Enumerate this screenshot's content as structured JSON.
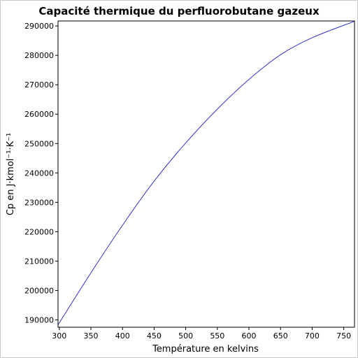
{
  "chart_data": {
    "type": "line",
    "title": "Capacité thermique du perfluorobutane gazeux",
    "xlabel": "Température en kelvins",
    "ylabel": "Cp en J·kmol⁻¹·K⁻¹",
    "xlim": [
      298,
      767
    ],
    "ylim": [
      187500,
      291700
    ],
    "xticks": [
      300,
      350,
      400,
      450,
      500,
      550,
      600,
      650,
      700,
      750
    ],
    "yticks": [
      190000,
      200000,
      210000,
      220000,
      230000,
      240000,
      250000,
      260000,
      270000,
      280000,
      290000
    ],
    "grid": false,
    "series": [
      {
        "color": "#3333cc",
        "x": [
          298,
          350,
          400,
          450,
          500,
          550,
          600,
          650,
          700,
          767
        ],
        "y": [
          188300,
          206000,
          222200,
          237200,
          250200,
          261700,
          271800,
          280200,
          286000,
          291600
        ]
      }
    ]
  }
}
